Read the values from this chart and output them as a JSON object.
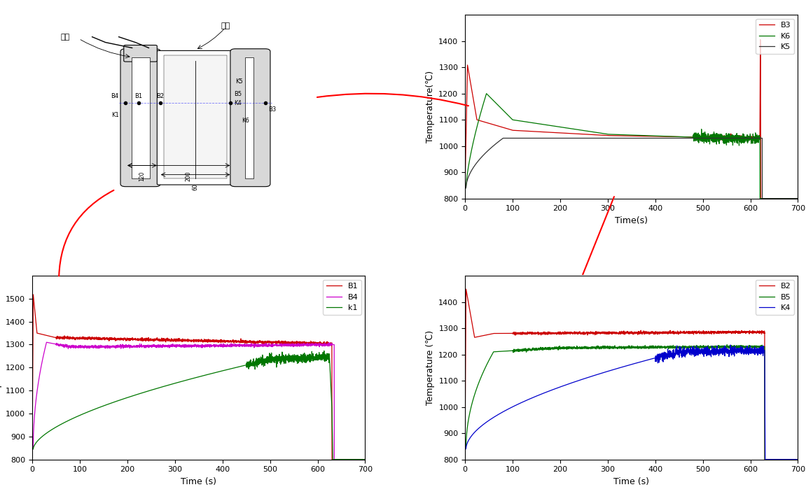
{
  "top_right": {
    "xlabel": "Time(s)",
    "ylabel": "Temperature(℃)",
    "xlim": [
      0,
      700
    ],
    "ylim": [
      800,
      1500
    ],
    "yticks": [
      800,
      900,
      1000,
      1100,
      1200,
      1300,
      1400
    ],
    "xticks": [
      0,
      100,
      200,
      300,
      400,
      500,
      600,
      700
    ],
    "legend": [
      "B3",
      "K6",
      "K5"
    ],
    "colors": [
      "#cc0000",
      "#007700",
      "#333333"
    ]
  },
  "bottom_left": {
    "xlabel": "Time (s)",
    "ylabel": "Temperature (℃)",
    "xlim": [
      0,
      700
    ],
    "ylim": [
      800,
      1600
    ],
    "yticks": [
      800,
      900,
      1000,
      1100,
      1200,
      1300,
      1400,
      1500
    ],
    "xticks": [
      0,
      100,
      200,
      300,
      400,
      500,
      600,
      700
    ],
    "legend": [
      "B1",
      "B4",
      "k1"
    ],
    "colors": [
      "#cc0000",
      "#cc00cc",
      "#007700"
    ]
  },
  "bottom_right": {
    "xlabel": "Time (s)",
    "ylabel": "Temperature (℃)",
    "xlim": [
      0,
      700
    ],
    "ylim": [
      800,
      1500
    ],
    "yticks": [
      800,
      900,
      1000,
      1100,
      1200,
      1300,
      1400
    ],
    "xticks": [
      0,
      100,
      200,
      300,
      400,
      500,
      600,
      700
    ],
    "legend": [
      "B2",
      "B5",
      "K4"
    ],
    "colors": [
      "#cc0000",
      "#007700",
      "#0000cc"
    ]
  },
  "diagram": {
    "label_xingke": "型壳",
    "label_shiyang": "试样"
  },
  "background_color": "#ffffff"
}
